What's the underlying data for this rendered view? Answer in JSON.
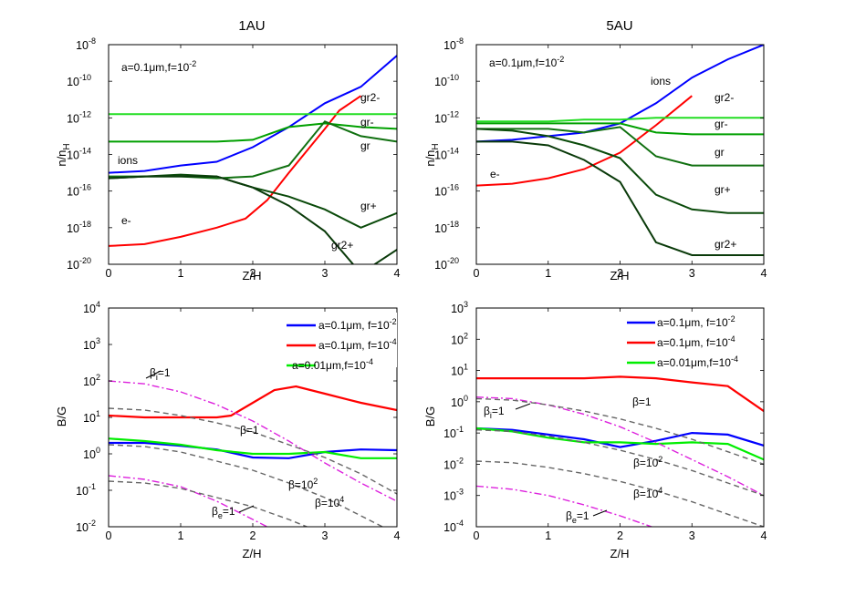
{
  "chart_data": [
    {
      "id": "p1",
      "type": "line",
      "title": "1AU",
      "xlabel": "Z/H",
      "ylabel_main": "n/n",
      "ylabel_sub": "H",
      "xlim": [
        0,
        4
      ],
      "ylim_exp": [
        -20,
        -8
      ],
      "yscale": "log",
      "xticks": [
        "0",
        "1",
        "2",
        "3",
        "4"
      ],
      "yticks": [
        "-20",
        "-18",
        "-16",
        "-14",
        "-12",
        "-10",
        "-8"
      ],
      "param_text": "a=0.1μm,f=10",
      "param_exp": "-2",
      "series": [
        {
          "name": "ions",
          "color": "#0000ff",
          "x": [
            0,
            0.5,
            1,
            1.5,
            2,
            2.5,
            3,
            3.5,
            4
          ],
          "y": [
            -15.0,
            -14.9,
            -14.6,
            -14.4,
            -13.6,
            -12.5,
            -11.2,
            -10.3,
            -8.6
          ]
        },
        {
          "name": "e-",
          "color": "#ff0000",
          "x": [
            0,
            0.5,
            1,
            1.5,
            1.9,
            2.2,
            2.5,
            3,
            3.2,
            3.5
          ],
          "y": [
            -19.0,
            -18.9,
            -18.5,
            -18.0,
            -17.5,
            -16.5,
            -15.0,
            -12.6,
            -11.6,
            -10.8
          ]
        },
        {
          "name": "gr2-",
          "color": "#22dd22",
          "x": [
            0,
            0.5,
            1,
            1.5,
            2,
            2.5,
            3,
            3.5,
            4
          ],
          "y": [
            -11.8,
            -11.8,
            -11.8,
            -11.8,
            -11.8,
            -11.8,
            -11.8,
            -11.8,
            -11.8
          ]
        },
        {
          "name": "gr-",
          "color": "#00a000",
          "x": [
            0,
            0.5,
            1,
            1.5,
            2,
            2.5,
            3,
            3.5,
            4
          ],
          "y": [
            -13.3,
            -13.3,
            -13.3,
            -13.3,
            -13.2,
            -12.5,
            -12.3,
            -12.5,
            -12.6
          ]
        },
        {
          "name": "gr",
          "color": "#107010",
          "x": [
            0,
            0.5,
            1,
            1.5,
            2,
            2.5,
            3,
            3.5,
            4
          ],
          "y": [
            -15.2,
            -15.2,
            -15.2,
            -15.3,
            -15.2,
            -14.6,
            -12.2,
            -13.0,
            -13.3
          ]
        },
        {
          "name": "gr+",
          "color": "#0a4a0a",
          "x": [
            0,
            0.5,
            1,
            1.5,
            2,
            2.5,
            3,
            3.5,
            4
          ],
          "y": [
            -15.3,
            -15.2,
            -15.1,
            -15.2,
            -15.8,
            -16.3,
            -17.0,
            -18.0,
            -17.2
          ]
        },
        {
          "name": "gr2+",
          "color": "#0a3a0a",
          "x": [
            0,
            0.5,
            1,
            1.5,
            2,
            2.5,
            3,
            3.5,
            4
          ],
          "y": [
            -15.3,
            -15.2,
            -15.2,
            -15.2,
            -15.8,
            -16.8,
            -18.2,
            -20.5,
            -19.2
          ]
        }
      ],
      "labels": [
        "gr2-",
        "gr-",
        "gr",
        "gr+",
        "gr2+",
        "ions",
        "e-"
      ]
    },
    {
      "id": "p2",
      "type": "line",
      "title": "5AU",
      "xlabel": "Z/H",
      "ylabel_main": "n/n",
      "ylabel_sub": "H",
      "xlim": [
        0,
        4
      ],
      "ylim_exp": [
        -20,
        -8
      ],
      "yscale": "log",
      "xticks": [
        "0",
        "1",
        "2",
        "3",
        "4"
      ],
      "yticks": [
        "-20",
        "-18",
        "-16",
        "-14",
        "-12",
        "-10",
        "-8"
      ],
      "param_text": "a=0.1μm,f=10",
      "param_exp": "-2",
      "series": [
        {
          "name": "ions",
          "color": "#0000ff",
          "x": [
            0,
            0.5,
            1,
            1.5,
            2,
            2.5,
            3,
            3.5,
            4
          ],
          "y": [
            -13.3,
            -13.2,
            -13.0,
            -12.8,
            -12.3,
            -11.2,
            -9.8,
            -8.8,
            -8.0
          ]
        },
        {
          "name": "e-",
          "color": "#ff0000",
          "x": [
            0,
            0.5,
            1,
            1.5,
            2,
            2.5,
            3
          ],
          "y": [
            -15.7,
            -15.6,
            -15.3,
            -14.8,
            -13.9,
            -12.4,
            -10.8
          ]
        },
        {
          "name": "gr2-",
          "color": "#22dd22",
          "x": [
            0,
            0.5,
            1,
            1.5,
            2,
            2.5,
            3,
            3.5,
            4
          ],
          "y": [
            -12.2,
            -12.2,
            -12.2,
            -12.1,
            -12.1,
            -12.0,
            -12.0,
            -12.0,
            -12.0
          ]
        },
        {
          "name": "gr-",
          "color": "#00a000",
          "x": [
            0,
            0.5,
            1,
            1.5,
            2,
            2.5,
            3,
            3.5,
            4
          ],
          "y": [
            -12.3,
            -12.3,
            -12.3,
            -12.3,
            -12.3,
            -12.8,
            -12.9,
            -12.9,
            -12.9
          ]
        },
        {
          "name": "gr",
          "color": "#107010",
          "x": [
            0,
            0.5,
            1,
            1.5,
            2,
            2.5,
            3,
            3.5,
            4
          ],
          "y": [
            -12.6,
            -12.6,
            -12.6,
            -12.8,
            -12.5,
            -14.1,
            -14.6,
            -14.6,
            -14.6
          ]
        },
        {
          "name": "gr+",
          "color": "#0a4a0a",
          "x": [
            0,
            0.5,
            1,
            1.5,
            2,
            2.5,
            3,
            3.5,
            4
          ],
          "y": [
            -12.6,
            -12.7,
            -13.0,
            -13.5,
            -14.2,
            -16.2,
            -17.0,
            -17.2,
            -17.2
          ]
        },
        {
          "name": "gr2+",
          "color": "#0a3a0a",
          "x": [
            0,
            0.5,
            1,
            1.5,
            2,
            2.5,
            3,
            3.5,
            4
          ],
          "y": [
            -13.3,
            -13.3,
            -13.5,
            -14.3,
            -15.5,
            -18.8,
            -19.5,
            -19.5,
            -19.5
          ]
        }
      ],
      "labels": [
        "ions",
        "gr2-",
        "gr-",
        "gr",
        "gr+",
        "gr2+",
        "e-"
      ]
    },
    {
      "id": "p3",
      "type": "line",
      "title": "",
      "xlabel": "Z/H",
      "ylabel": "B/G",
      "xlim": [
        0,
        4
      ],
      "ylim_exp": [
        -2,
        4
      ],
      "yscale": "log",
      "xticks": [
        "0",
        "1",
        "2",
        "3",
        "4"
      ],
      "yticks": [
        "-2",
        "-1",
        "0",
        "1",
        "2",
        "3",
        "4"
      ],
      "legend": [
        {
          "label": "a=0.1μm, f=10",
          "exp": "-2",
          "color": "#0000ff"
        },
        {
          "label": "a=0.1μm, f=10",
          "exp": "-4",
          "color": "#ff0000"
        },
        {
          "label": "a=0.01μm,f=10",
          "exp": "-4",
          "color": "#00ee00"
        }
      ],
      "series": [
        {
          "name": "a=0.1μm, f=10^-2",
          "color": "#0000ff",
          "style": "solid",
          "x": [
            0,
            0.5,
            1,
            1.5,
            2,
            2.5,
            3,
            3.5,
            4
          ],
          "y": [
            0.3,
            0.3,
            0.22,
            0.12,
            -0.1,
            -0.12,
            0.05,
            0.12,
            0.1
          ]
        },
        {
          "name": "a=0.1μm, f=10^-4",
          "color": "#ff0000",
          "style": "solid",
          "x": [
            0,
            0.5,
            1,
            1.5,
            1.7,
            2,
            2.3,
            2.6,
            3,
            3.5,
            4
          ],
          "y": [
            1.05,
            1.0,
            1.0,
            1.0,
            1.05,
            1.4,
            1.75,
            1.85,
            1.65,
            1.4,
            1.2
          ]
        },
        {
          "name": "a=0.01μm,f=10^-4",
          "color": "#00ee00",
          "style": "solid",
          "x": [
            0,
            0.5,
            1,
            1.5,
            2,
            2.5,
            3,
            3.5,
            4
          ],
          "y": [
            0.42,
            0.35,
            0.25,
            0.1,
            0.0,
            0.0,
            0.05,
            -0.12,
            -0.12
          ]
        },
        {
          "name": "βi=1",
          "color": "#dd22dd",
          "style": "dashdot",
          "x": [
            0,
            0.5,
            1,
            1.5,
            2,
            2.5,
            3,
            3.5,
            4
          ],
          "y": [
            2.0,
            1.92,
            1.7,
            1.35,
            0.9,
            0.35,
            -0.25,
            -0.8,
            -1.3
          ]
        },
        {
          "name": "βe=1",
          "color": "#dd22dd",
          "style": "dashdot",
          "x": [
            0,
            0.5,
            1,
            1.5,
            2,
            2.5,
            3
          ],
          "y": [
            -0.6,
            -0.7,
            -0.9,
            -1.3,
            -1.8,
            -2.3,
            -2.8
          ]
        },
        {
          "name": "β=1",
          "color": "#666666",
          "style": "dashed",
          "x": [
            0,
            0.5,
            1,
            1.5,
            2,
            2.5,
            3,
            3.5,
            4
          ],
          "y": [
            1.25,
            1.2,
            1.05,
            0.85,
            0.6,
            0.25,
            -0.1,
            -0.55,
            -1.1
          ]
        },
        {
          "name": "β=10^2",
          "color": "#666666",
          "style": "dashed",
          "x": [
            0,
            0.5,
            1,
            1.5,
            2,
            2.5,
            3,
            3.5,
            4
          ],
          "y": [
            0.25,
            0.2,
            0.05,
            -0.2,
            -0.45,
            -0.8,
            -1.2,
            -1.7,
            -2.2
          ]
        },
        {
          "name": "β=10^4",
          "color": "#666666",
          "style": "dashed",
          "x": [
            0,
            0.5,
            1,
            1.5,
            2,
            2.5,
            3
          ],
          "y": [
            -0.75,
            -0.8,
            -0.95,
            -1.2,
            -1.45,
            -1.8,
            -2.2
          ]
        }
      ],
      "annotations": [
        {
          "text": "β",
          "sub": "i",
          "tail": "=1"
        },
        {
          "text": "β=1"
        },
        {
          "text": "β=10",
          "sup": "2"
        },
        {
          "text": "β=10",
          "sup": "4"
        },
        {
          "text": "β",
          "sub": "e",
          "tail": "=1"
        }
      ]
    },
    {
      "id": "p4",
      "type": "line",
      "title": "",
      "xlabel": "Z/H",
      "ylabel": "B/G",
      "xlim": [
        0,
        4
      ],
      "ylim_exp": [
        -4,
        3
      ],
      "yscale": "log",
      "xticks": [
        "0",
        "1",
        "2",
        "3",
        "4"
      ],
      "yticks": [
        "-4",
        "-3",
        "-2",
        "-1",
        "0",
        "1",
        "2",
        "3"
      ],
      "legend": [
        {
          "label": "a=0.1μm, f=10",
          "exp": "-2",
          "color": "#0000ff"
        },
        {
          "label": "a=0.1μm, f=10",
          "exp": "-4",
          "color": "#ff0000"
        },
        {
          "label": "a=0.01μm,f=10",
          "exp": "-4",
          "color": "#00ee00"
        }
      ],
      "series": [
        {
          "name": "a=0.1μm, f=10^-2",
          "color": "#0000ff",
          "style": "solid",
          "x": [
            0,
            0.5,
            1,
            1.5,
            2,
            2.5,
            3,
            3.5,
            4
          ],
          "y": [
            -0.85,
            -0.9,
            -1.05,
            -1.2,
            -1.45,
            -1.25,
            -1.0,
            -1.05,
            -1.4
          ]
        },
        {
          "name": "a=0.1μm, f=10^-4",
          "color": "#ff0000",
          "style": "solid",
          "x": [
            0,
            0.5,
            1,
            1.5,
            2,
            2.5,
            3,
            3.5,
            4
          ],
          "y": [
            0.75,
            0.75,
            0.75,
            0.75,
            0.8,
            0.75,
            0.62,
            0.5,
            -0.3
          ]
        },
        {
          "name": "a=0.01μm,f=10^-4",
          "color": "#00ee00",
          "style": "solid",
          "x": [
            0,
            0.5,
            1,
            1.5,
            2,
            2.5,
            3,
            3.5,
            4
          ],
          "y": [
            -0.85,
            -0.95,
            -1.15,
            -1.3,
            -1.3,
            -1.35,
            -1.3,
            -1.35,
            -1.85
          ]
        },
        {
          "name": "βi=1",
          "color": "#dd22dd",
          "style": "dashdot",
          "x": [
            0,
            0.5,
            1,
            1.5,
            2,
            2.5,
            3,
            3.5,
            4
          ],
          "y": [
            0.15,
            0.1,
            -0.1,
            -0.4,
            -0.8,
            -1.3,
            -1.85,
            -2.4,
            -3.0
          ]
        },
        {
          "name": "βe=1",
          "color": "#dd22dd",
          "style": "dashdot",
          "x": [
            0,
            0.5,
            1,
            1.5,
            2,
            2.5
          ],
          "y": [
            -2.7,
            -2.8,
            -3.0,
            -3.3,
            -3.65,
            -4.05
          ]
        },
        {
          "name": "β=1",
          "color": "#666666",
          "style": "dashed",
          "x": [
            0,
            0.5,
            1,
            1.5,
            2,
            2.5,
            3,
            3.5,
            4
          ],
          "y": [
            0.1,
            0.05,
            -0.1,
            -0.3,
            -0.55,
            -0.85,
            -1.2,
            -1.6,
            -2.0
          ]
        },
        {
          "name": "β=10^2",
          "color": "#666666",
          "style": "dashed",
          "x": [
            0,
            0.5,
            1,
            1.5,
            2,
            2.5,
            3,
            3.5,
            4
          ],
          "y": [
            -0.9,
            -0.95,
            -1.1,
            -1.3,
            -1.55,
            -1.85,
            -2.2,
            -2.6,
            -3.0
          ]
        },
        {
          "name": "β=10^4",
          "color": "#666666",
          "style": "dashed",
          "x": [
            0,
            0.5,
            1,
            1.5,
            2,
            2.5,
            3,
            3.5,
            4
          ],
          "y": [
            -1.9,
            -1.95,
            -2.1,
            -2.3,
            -2.55,
            -2.85,
            -3.2,
            -3.6,
            -4.0
          ]
        }
      ],
      "annotations": [
        {
          "text": "β=1"
        },
        {
          "text": "β",
          "sub": "i",
          "tail": "=1"
        },
        {
          "text": "β=10",
          "sup": "2"
        },
        {
          "text": "β=10",
          "sup": "4"
        },
        {
          "text": "β",
          "sub": "e",
          "tail": "=1"
        }
      ]
    }
  ]
}
